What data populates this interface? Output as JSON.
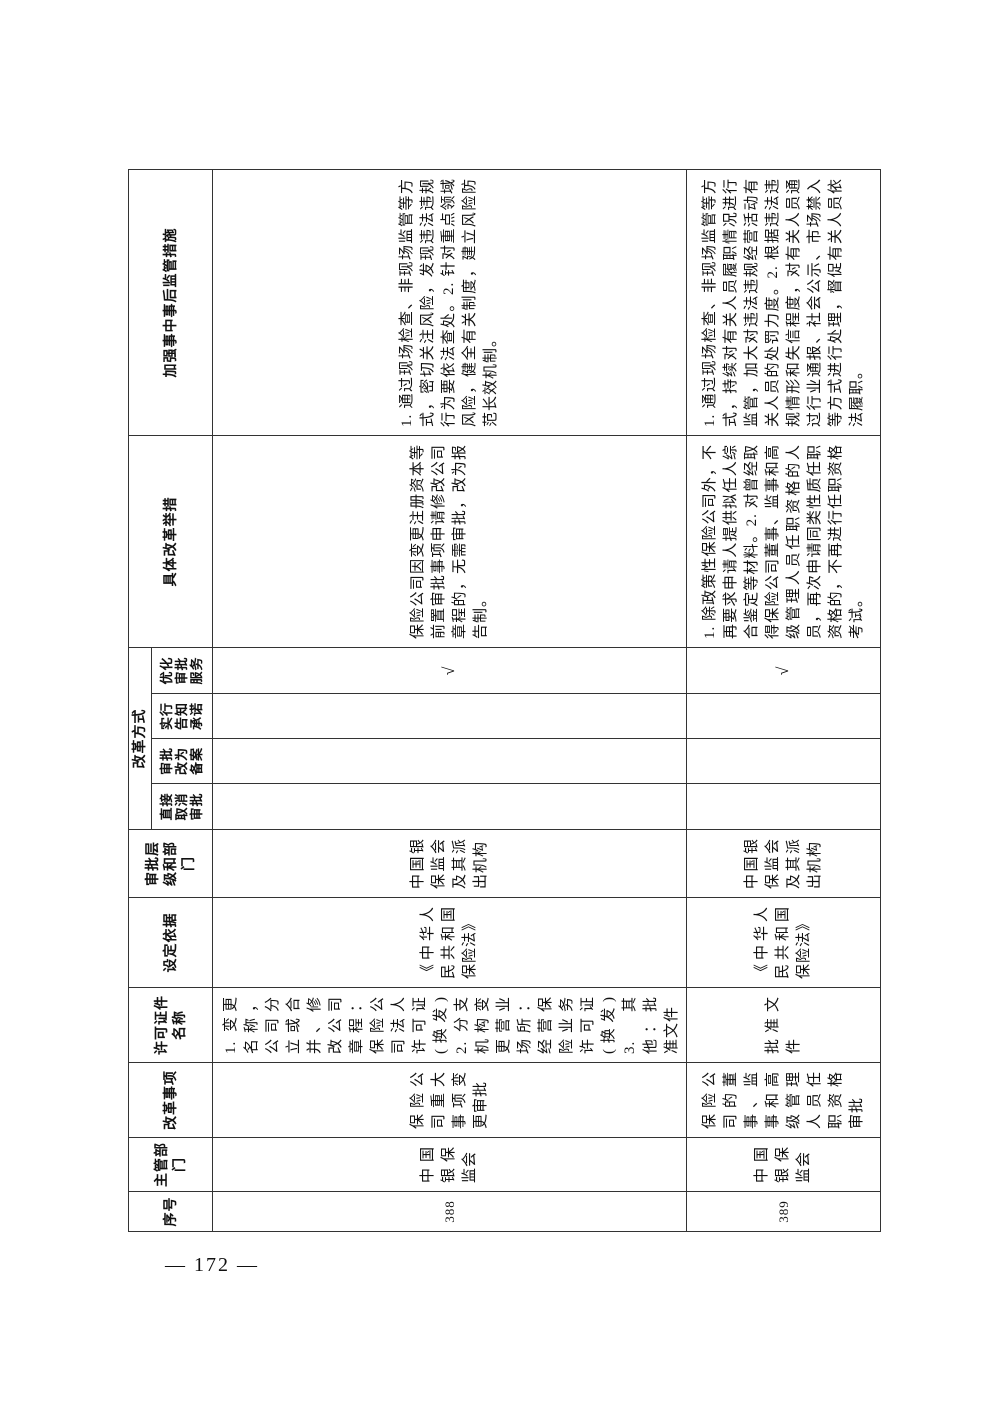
{
  "headers": {
    "seq": "序号",
    "dept": "主管部门",
    "item": "改革事项",
    "license": "许可证件名称",
    "basis": "设定依据",
    "level": "审批层级和部门",
    "method": "改革方式",
    "m1": "直接取消审批",
    "m2": "审批改为备案",
    "m3": "实行告知承诺",
    "m4": "优化审批服务",
    "measures": "具体改革举措",
    "supervision": "加强事中事后监管措施"
  },
  "rows": [
    {
      "seq": "388",
      "dept": "中国银保监会",
      "item": "保险公司重大事项变更审批",
      "license": "1. 变更名称，公司分立或合并、修改公司章程：保险公司法人许可证(换发) 2. 分支机构变更营业场所：经营保险业务许可证(换发) 3. 其他：批准文件",
      "basis": "《中华人民共和国保险法》",
      "level": "中国银保监会及其派出机构",
      "m4": "√",
      "measures": "保险公司因变更注册资本等前置审批事项申请修改公司章程的，无需审批，改为报告制。",
      "supervision": "1. 通过现场检查、非现场监管等方式，密切关注风险，发现违法违规行为要依法查处。2. 针对重点领域风险，健全有关制度，建立风险防范长效机制。"
    },
    {
      "seq": "389",
      "dept": "中国银保监会",
      "item": "保险公司的董事、监事和高级管理人员任职资格审批",
      "license": "批准文件",
      "basis": "《中华人民共和国保险法》",
      "level": "中国银保监会及其派出机构",
      "m4": "√",
      "measures": "1. 除政策性保险公司外，不再要求申请人提供拟任人综合鉴定等材料。2. 对曾经取得保险公司董事、监事和高级管理人员任职资格的人员，再次申请同类性质任职资格的，不再进行任职资格考试。",
      "supervision": "1. 通过现场检查、非现场监管等方式，持续对有关人员履职情况进行监管，加大对违法违规经营活动有关人员的处罚力度。2. 根据违法违规情形和失信程度，对有关人员通过行业通报、社会公示、市场禁入等方式进行处理，督促有关人员依法履职。"
    }
  ],
  "page_number": "— 172 —"
}
